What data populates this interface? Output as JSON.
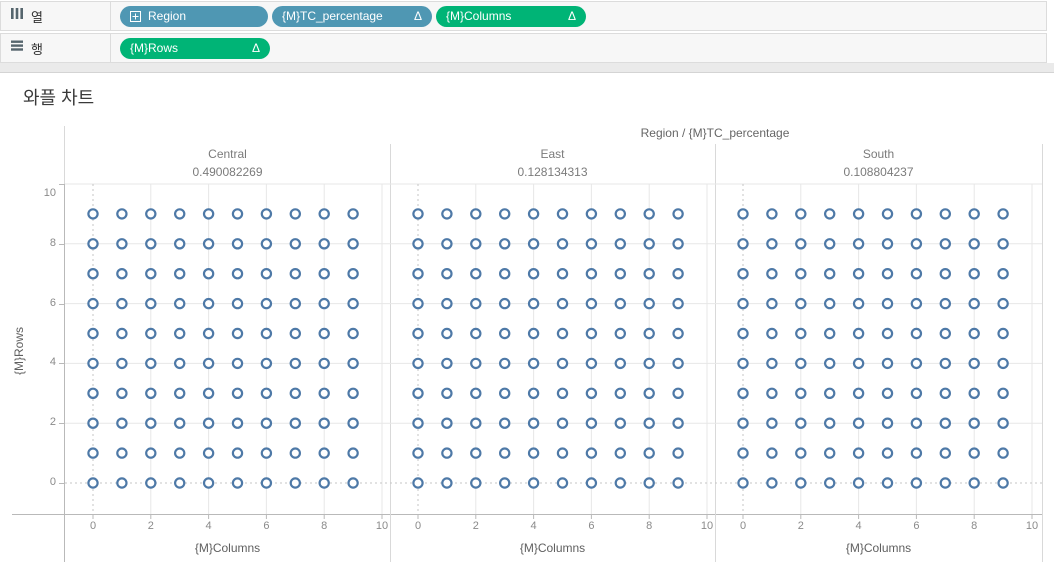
{
  "shelves": {
    "columns_shelf": {
      "label": "열",
      "pills": [
        {
          "label": "Region",
          "delta": "",
          "has_expand_icon": true
        },
        {
          "label": "{M}TC_percentage",
          "delta": "Δ",
          "has_expand_icon": false
        },
        {
          "label": "{M}Columns",
          "delta": "Δ",
          "has_expand_icon": false
        }
      ]
    },
    "rows_shelf": {
      "label": "행",
      "pills": [
        {
          "label": "{M}Rows",
          "delta": "Δ",
          "has_expand_icon": false
        }
      ]
    }
  },
  "sheet": {
    "title": "와플 차트"
  },
  "colors": {
    "dimension_pill_blue": "#4f97b3",
    "measure_pill_green": "#00b476",
    "mark_stroke_blue": "#4e79a7",
    "gridline": "#e7e7e7",
    "zero_line": "#c6c6c6",
    "axis_line": "#b9b9b9"
  },
  "chart_data": {
    "type": "scatter",
    "title": "와플 차트",
    "column_field_label": "Region / {M}TC_percentage",
    "panels": [
      {
        "region": "Central",
        "percentage": "0.490082269"
      },
      {
        "region": "East",
        "percentage": "0.128134313"
      },
      {
        "region": "South",
        "percentage": "0.108804237"
      }
    ],
    "x_axis": {
      "label": "{M}Columns",
      "ticks": [
        0,
        2,
        4,
        6,
        8,
        10
      ],
      "range": [
        -1.0,
        10.3
      ]
    },
    "y_axis": {
      "label": "{M}Rows",
      "ticks": [
        0,
        2,
        4,
        6,
        8,
        10
      ],
      "range": [
        -1.05,
        10.0
      ]
    },
    "marks": {
      "shape": "open-circle",
      "grid_rows": 10,
      "grid_cols": 10,
      "row_values": [
        0,
        1,
        2,
        3,
        4,
        5,
        6,
        7,
        8,
        9
      ],
      "col_values": [
        0,
        1,
        2,
        3,
        4,
        5,
        6,
        7,
        8,
        9
      ]
    },
    "grid": "on",
    "legend_position": "none"
  }
}
